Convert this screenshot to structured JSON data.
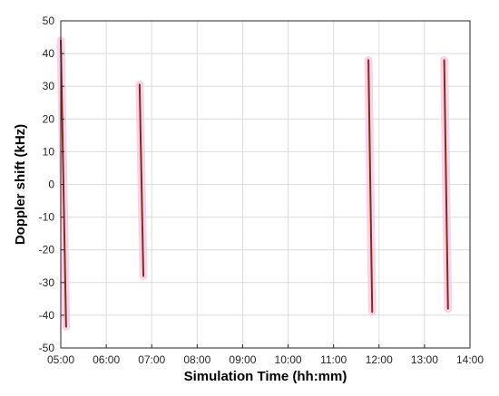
{
  "chart_data": {
    "type": "line",
    "title": "",
    "xlabel": "Simulation Time (hh:mm)",
    "ylabel": "Doppler shift (kHz)",
    "xlim": [
      "05:00",
      "14:00"
    ],
    "ylim": [
      -50,
      50
    ],
    "x_ticks": [
      "05:00",
      "06:00",
      "07:00",
      "08:00",
      "09:00",
      "10:00",
      "11:00",
      "12:00",
      "13:00",
      "14:00"
    ],
    "y_ticks": [
      50,
      40,
      30,
      20,
      10,
      0,
      -10,
      -20,
      -30,
      -40,
      -50
    ],
    "grid": true,
    "legend": "none",
    "colors": {
      "line": "#8B2A14",
      "halo": "#F6C6E6",
      "grid": "#DCDCDC",
      "axis": "#262626"
    },
    "series": [
      {
        "x": [
          "05:00",
          "05:07"
        ],
        "y": [
          44,
          -43.5
        ]
      },
      {
        "x": [
          "06:44",
          "06:49"
        ],
        "y": [
          30.5,
          -28
        ]
      },
      {
        "x": [
          "11:46",
          "11:51"
        ],
        "y": [
          38,
          -39
        ]
      },
      {
        "x": [
          "13:26",
          "13:31"
        ],
        "y": [
          38,
          -38
        ]
      }
    ]
  }
}
